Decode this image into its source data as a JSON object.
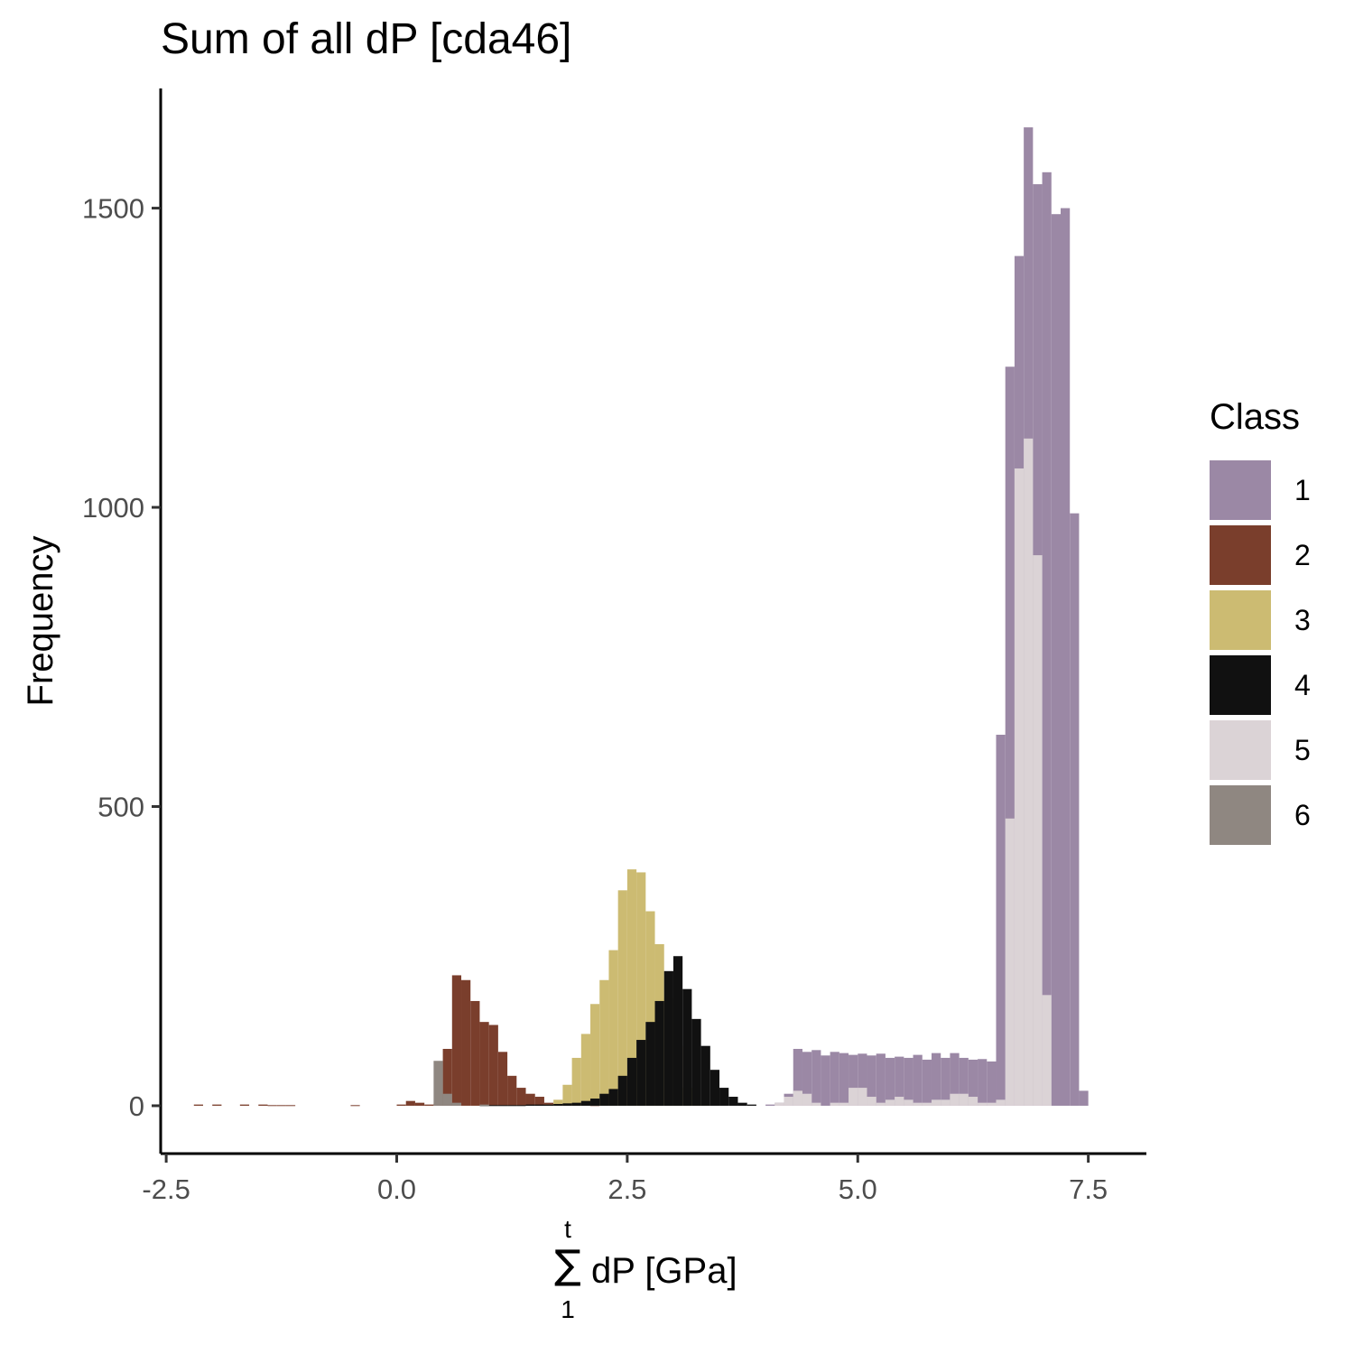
{
  "chart_data": {
    "type": "histogram",
    "title": "Sum of all dP [cda46]",
    "ylabel": "Frequency",
    "xlabel": {
      "sum_upper": "t",
      "sum_lower": "1",
      "sum_symbol": "∑",
      "text": "dP [GPa]"
    },
    "xlim": [
      -2.56,
      8.13
    ],
    "ylim": [
      -80,
      1700
    ],
    "xticks": [
      {
        "value": -2.5,
        "label": "-2.5"
      },
      {
        "value": 0.0,
        "label": "0.0"
      },
      {
        "value": 2.5,
        "label": "2.5"
      },
      {
        "value": 5.0,
        "label": "5.0"
      },
      {
        "value": 7.5,
        "label": "7.5"
      }
    ],
    "yticks": [
      {
        "value": 0,
        "label": "0"
      },
      {
        "value": 500,
        "label": "500"
      },
      {
        "value": 1000,
        "label": "1000"
      },
      {
        "value": 1500,
        "label": "1500"
      }
    ],
    "bin_start": -2.3,
    "bin_width": 0.1,
    "grid": false,
    "legend_position": "right",
    "legend": {
      "title": "Class",
      "entries": [
        {
          "name": "1",
          "color": "#9b88a5"
        },
        {
          "name": "2",
          "color": "#7a3e2c"
        },
        {
          "name": "3",
          "color": "#ccbb72"
        },
        {
          "name": "4",
          "color": "#111111"
        },
        {
          "name": "5",
          "color": "#dbd3d6"
        },
        {
          "name": "6",
          "color": "#8f8781"
        }
      ]
    },
    "series": [
      {
        "name": "2",
        "color": "#7a3e2c",
        "start": -2.3,
        "values": [
          0,
          2,
          0,
          2,
          0,
          0,
          2,
          0,
          2,
          1,
          1,
          1,
          0,
          0,
          0,
          0,
          0,
          0,
          1,
          0,
          0,
          0,
          0,
          2,
          8,
          5,
          2,
          3,
          95,
          218,
          210,
          175,
          140,
          135,
          90,
          50,
          30,
          20,
          15,
          5,
          2,
          2,
          0,
          0,
          1
        ]
      },
      {
        "name": "3",
        "color": "#ccbb72",
        "start": 1.6,
        "values": [
          2,
          10,
          35,
          80,
          120,
          170,
          210,
          260,
          360,
          395,
          390,
          325,
          270,
          180,
          100,
          30,
          8,
          2
        ]
      },
      {
        "name": "4",
        "color": "#111111",
        "start": 0.9,
        "values": [
          1,
          1,
          1,
          1,
          1,
          2,
          2,
          2,
          3,
          4,
          5,
          8,
          12,
          20,
          28,
          50,
          80,
          110,
          140,
          175,
          225,
          250,
          195,
          145,
          100,
          60,
          30,
          15,
          5,
          2
        ]
      },
      {
        "name": "6",
        "color": "#8f8781",
        "start": 0.0,
        "values": [
          0,
          0,
          0,
          0,
          75,
          20,
          5,
          0,
          0,
          2
        ]
      },
      {
        "name": "1",
        "color": "#9b88a5",
        "start": 4.0,
        "values": [
          2,
          5,
          20,
          95,
          90,
          93,
          84,
          90,
          88,
          85,
          87,
          84,
          87,
          80,
          82,
          80,
          85,
          77,
          88,
          80,
          88,
          80,
          77,
          78,
          74,
          620,
          1235,
          1420,
          1635,
          1540,
          1560,
          1490,
          1500,
          990,
          25
        ]
      },
      {
        "name": "5",
        "color": "#dbd3d6",
        "start": 4.1,
        "values": [
          5,
          15,
          25,
          20,
          5,
          0,
          5,
          5,
          30,
          30,
          15,
          5,
          10,
          15,
          10,
          5,
          5,
          10,
          10,
          20,
          20,
          15,
          5,
          5,
          10,
          480,
          1065,
          1115,
          920,
          185,
          0,
          0,
          0
        ]
      }
    ]
  }
}
